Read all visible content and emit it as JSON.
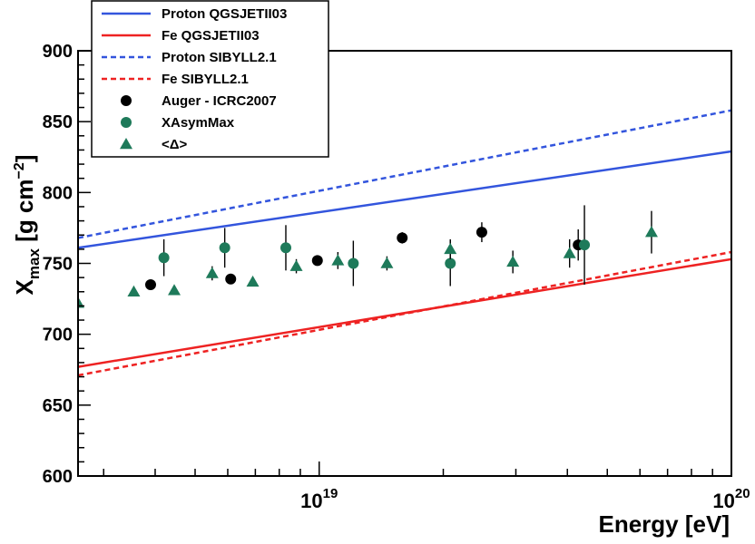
{
  "chart_data": {
    "type": "scatter",
    "title": "",
    "xlabel": "Energy [eV]",
    "ylabel": {
      "main": "X",
      "sub": "max",
      "unit_pre": " [g cm",
      "unit_sup": "−2",
      "unit_post": "]"
    },
    "xscale": "log",
    "xlim": [
      2.6e+18,
      1e+20
    ],
    "ylim": [
      600,
      900
    ],
    "grid": false,
    "legend_position": "top-left",
    "y_ticks": [
      600,
      650,
      700,
      750,
      800,
      850,
      900
    ],
    "x_ticks": [
      {
        "value": 1e+19,
        "base": "10",
        "exp": "19"
      },
      {
        "value": 1e+20,
        "base": "10",
        "exp": "20"
      }
    ],
    "lines": [
      {
        "name": "Proton QGSJETII03",
        "color": "#3355dd",
        "dash": "solid",
        "x": [
          2.6e+18,
          1e+20
        ],
        "y": [
          761,
          829
        ]
      },
      {
        "name": "Fe QGSJETII03",
        "color": "#ee2222",
        "dash": "solid",
        "x": [
          2.6e+18,
          1e+20
        ],
        "y": [
          677,
          753
        ]
      },
      {
        "name": "Proton SIBYLL2.1",
        "color": "#3355dd",
        "dash": "dashed",
        "x": [
          2.6e+18,
          1e+20
        ],
        "y": [
          768,
          858
        ]
      },
      {
        "name": "Fe SIBYLL2.1",
        "color": "#ee2222",
        "dash": "dashed",
        "x": [
          2.6e+18,
          1e+20
        ],
        "y": [
          671,
          758
        ]
      }
    ],
    "series": [
      {
        "name": "Auger - ICRC2007",
        "marker": "circle",
        "color": "#000000",
        "points": [
          {
            "x": 3.9e+18,
            "y": 735,
            "err": 2
          },
          {
            "x": 6.1e+18,
            "y": 739,
            "err": 2
          },
          {
            "x": 9.9e+18,
            "y": 752,
            "err": 2
          },
          {
            "x": 1.59e+19,
            "y": 768,
            "err": 4
          },
          {
            "x": 2.48e+19,
            "y": 772,
            "err": 7
          },
          {
            "x": 4.25e+19,
            "y": 763,
            "err": 11
          }
        ]
      },
      {
        "name": "XAsymMax",
        "marker": "circle",
        "color": "#1e7a5a",
        "points": [
          {
            "x": 4.2e+18,
            "y": 754,
            "err": 13
          },
          {
            "x": 5.9e+18,
            "y": 761,
            "err": 14
          },
          {
            "x": 8.3e+18,
            "y": 761,
            "err": 16
          },
          {
            "x": 1.21e+19,
            "y": 750,
            "err": 16
          },
          {
            "x": 2.08e+19,
            "y": 750,
            "err": 16
          },
          {
            "x": 4.4e+19,
            "y": 763,
            "err": 28
          }
        ]
      },
      {
        "name": "<Δ>",
        "marker": "triangle",
        "color": "#1e7a5a",
        "points": [
          {
            "x": 2.6e+18,
            "y": 722,
            "err": 6
          },
          {
            "x": 3.55e+18,
            "y": 730,
            "err": 0
          },
          {
            "x": 4.45e+18,
            "y": 731,
            "err": 0
          },
          {
            "x": 5.5e+18,
            "y": 743,
            "err": 5
          },
          {
            "x": 6.9e+18,
            "y": 737,
            "err": 0
          },
          {
            "x": 8.8e+18,
            "y": 748,
            "err": 5
          },
          {
            "x": 1.11e+19,
            "y": 752,
            "err": 6
          },
          {
            "x": 1.46e+19,
            "y": 750,
            "err": 5
          },
          {
            "x": 2.08e+19,
            "y": 760,
            "err": 7
          },
          {
            "x": 2.95e+19,
            "y": 751,
            "err": 8
          },
          {
            "x": 4.05e+19,
            "y": 757,
            "err": 10
          },
          {
            "x": 6.4e+19,
            "y": 772,
            "err": 15
          }
        ]
      }
    ],
    "legend_order": [
      "Proton QGSJETII03",
      "Fe QGSJETII03",
      "Proton SIBYLL2.1",
      "Fe SIBYLL2.1",
      "Auger - ICRC2007",
      "XAsymMax",
      "<Δ>"
    ]
  }
}
